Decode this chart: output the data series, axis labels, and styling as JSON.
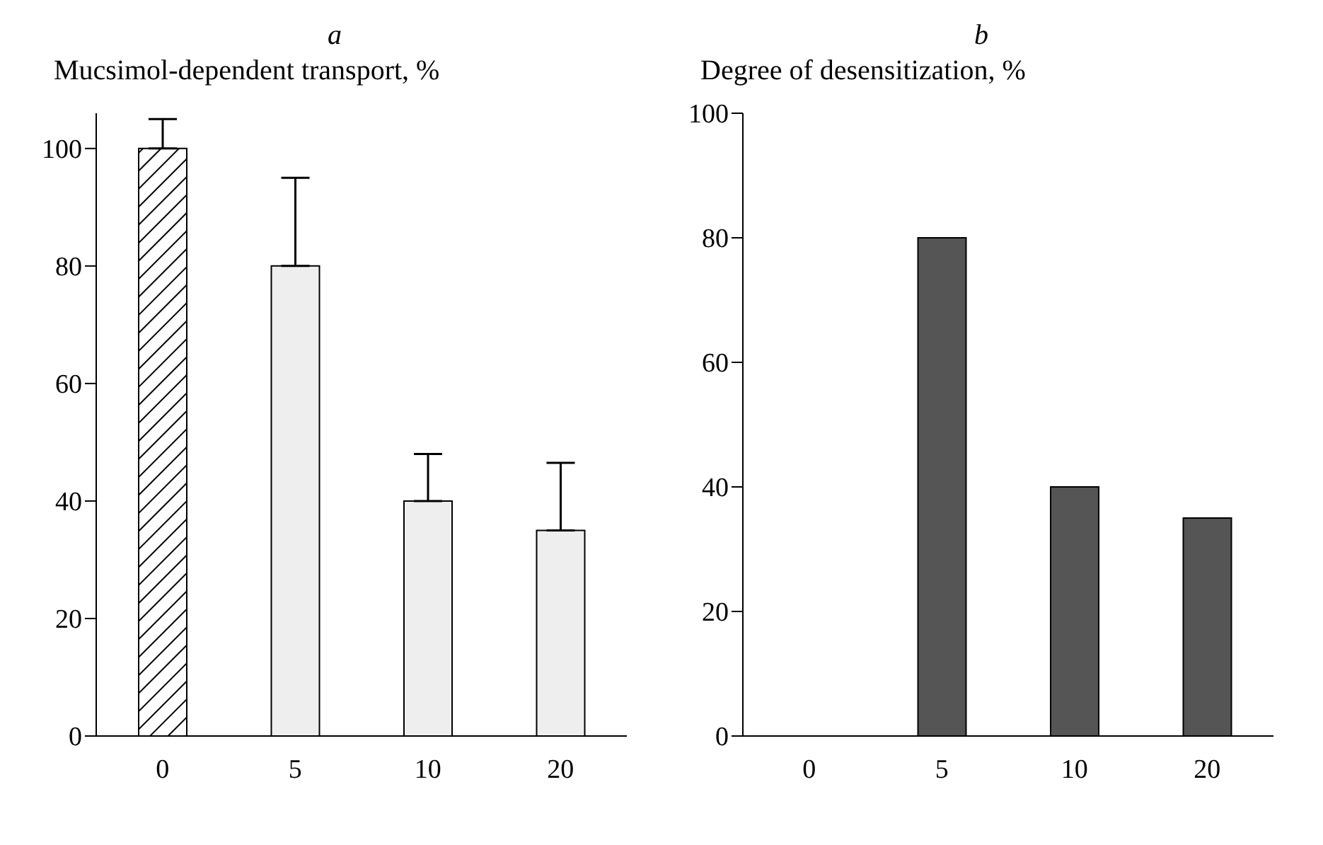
{
  "chart_data": [
    {
      "type": "bar",
      "title": "a",
      "ylabel": "Mucsimol-dependent transport, %",
      "categories": [
        "0",
        "5",
        "10",
        "20"
      ],
      "values": [
        100,
        80,
        40,
        35
      ],
      "colors": [
        "#000000",
        "#eeeeee",
        "#eeeeee",
        "#eeeeee"
      ],
      "errors": [
        [
          100,
          105
        ],
        [
          80,
          95
        ],
        [
          40,
          48
        ],
        [
          35,
          46.5
        ]
      ],
      "ylim": [
        0,
        106
      ],
      "yticks": [
        0,
        20,
        40,
        60,
        80,
        100
      ],
      "grid": false,
      "legend": false
    },
    {
      "type": "bar",
      "title": "b",
      "ylabel": "Degree of desensitization, %",
      "categories": [
        "0",
        "5",
        "10",
        "20"
      ],
      "values": [
        0,
        80,
        40,
        35
      ],
      "color": "#555555",
      "ylim": [
        0,
        100
      ],
      "yticks": [
        0,
        20,
        40,
        60,
        80,
        100
      ],
      "grid": false,
      "legend": false
    }
  ]
}
